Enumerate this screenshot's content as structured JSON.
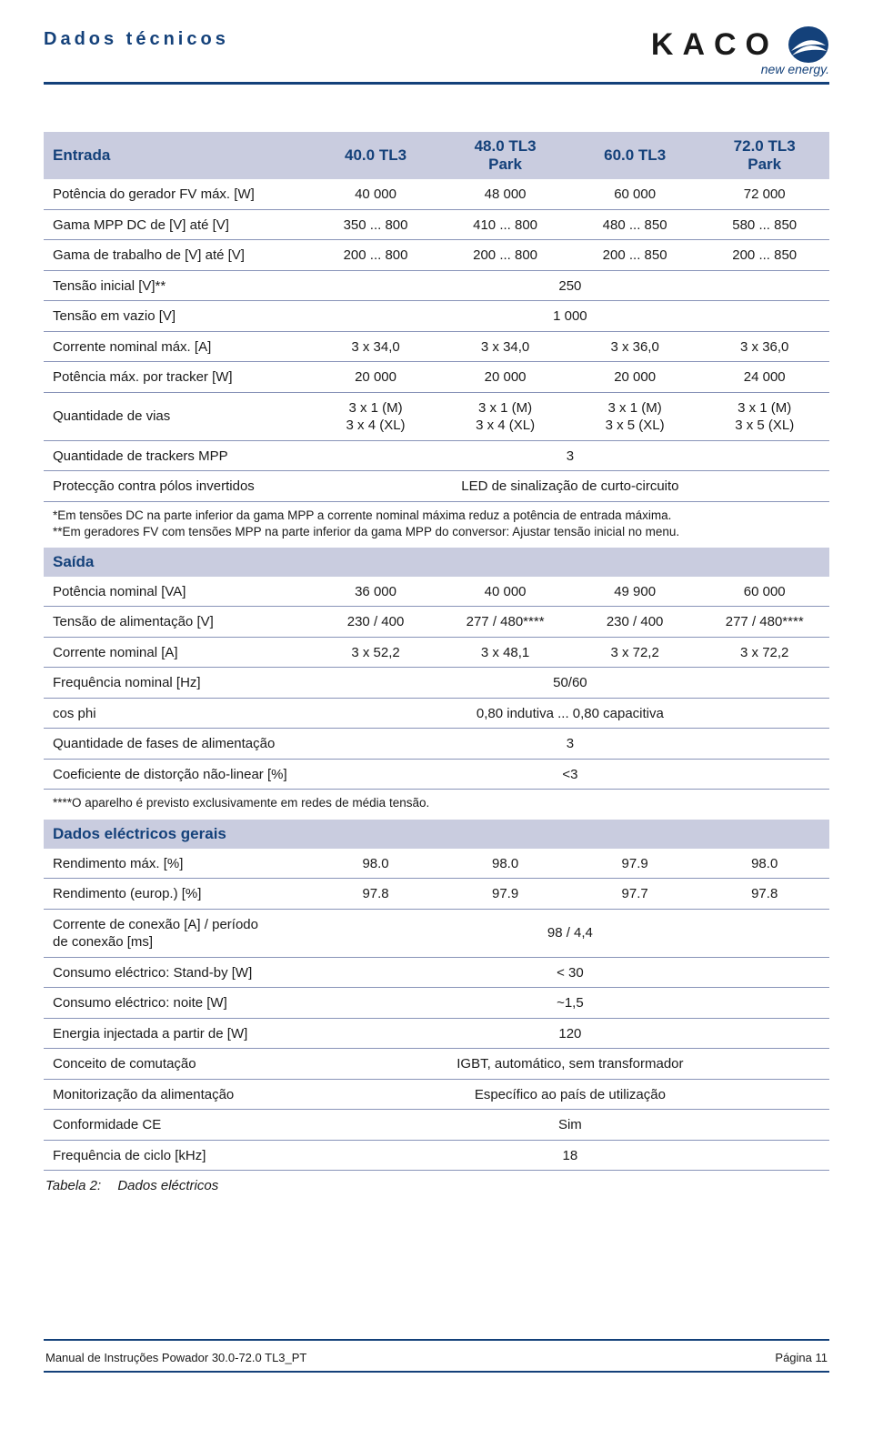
{
  "header": {
    "title": "Dados técnicos",
    "brand_name": "KACO",
    "brand_sub": "new energy."
  },
  "colors": {
    "primary": "#14417a",
    "section_bg": "#c9ccdf",
    "row_border": "#8893b8",
    "text": "#1a1a1a",
    "background": "#ffffff"
  },
  "columns": [
    "40.0 TL3",
    "48.0 TL3\nPark",
    "60.0 TL3",
    "72.0 TL3\nPark"
  ],
  "sections": {
    "entrada": {
      "title": "Entrada",
      "rows": [
        {
          "label": "Potência do gerador FV máx. [W]",
          "vals": [
            "40 000",
            "48 000",
            "60 000",
            "72 000"
          ]
        },
        {
          "label": "Gama MPP DC de [V] até [V]",
          "vals": [
            "350 ... 800",
            "410 ... 800",
            "480 ... 850",
            "580 ... 850"
          ]
        },
        {
          "label": "Gama de trabalho de [V] até [V]",
          "vals": [
            "200 ... 800",
            "200 ... 800",
            "200 ... 850",
            "200 ... 850"
          ]
        },
        {
          "label": "Tensão inicial [V]**",
          "span": "250"
        },
        {
          "label": "Tensão em vazio [V]",
          "span": "1 000"
        },
        {
          "label": "Corrente nominal máx. [A]",
          "vals": [
            "3 x 34,0",
            "3 x 34,0",
            "3 x 36,0",
            "3 x 36,0"
          ]
        },
        {
          "label": "Potência máx. por tracker [W]",
          "vals": [
            "20 000",
            "20 000",
            "20 000",
            "24 000"
          ]
        },
        {
          "label": "Quantidade de vias",
          "vals": [
            "3 x 1 (M)\n3 x 4 (XL)",
            "3 x 1 (M)\n3 x 4 (XL)",
            "3 x 1 (M)\n3 x 5 (XL)",
            "3 x 1 (M)\n3 x 5 (XL)"
          ]
        },
        {
          "label": "Quantidade de trackers MPP",
          "span": "3"
        },
        {
          "label": "Protecção contra pólos invertidos",
          "span": "LED de sinalização de curto-circuito"
        }
      ],
      "notes": "*Em tensões DC na parte inferior da gama MPP a corrente nominal máxima reduz a potência de entrada máxima.\n**Em geradores FV com tensões MPP na parte inferior da gama MPP do conversor: Ajustar tensão inicial no menu."
    },
    "saida": {
      "title": "Saída",
      "rows": [
        {
          "label": "Potência nominal [VA]",
          "vals": [
            "36 000",
            "40 000",
            "49 900",
            "60 000"
          ]
        },
        {
          "label": "Tensão de alimentação [V]",
          "vals": [
            "230 / 400",
            "277 / 480****",
            "230 / 400",
            "277 / 480****"
          ]
        },
        {
          "label": "Corrente nominal [A]",
          "vals": [
            "3 x 52,2",
            "3 x 48,1",
            "3 x 72,2",
            "3 x 72,2"
          ]
        },
        {
          "label": "Frequência nominal [Hz]",
          "span": "50/60"
        },
        {
          "label": "cos phi",
          "span": "0,80 indutiva ... 0,80 capacitiva"
        },
        {
          "label": "Quantidade de fases de alimentação",
          "span": "3"
        },
        {
          "label": "Coeficiente de distorção não-linear [%]",
          "span": "<3"
        }
      ],
      "notes": "****O aparelho é previsto exclusivamente em redes de média tensão."
    },
    "gerais": {
      "title": "Dados eléctricos gerais",
      "rows": [
        {
          "label": "Rendimento máx. [%]",
          "vals": [
            "98.0",
            "98.0",
            "97.9",
            "98.0"
          ]
        },
        {
          "label": "Rendimento (europ.) [%]",
          "vals": [
            "97.8",
            "97.9",
            "97.7",
            "97.8"
          ]
        },
        {
          "label": "Corrente de conexão [A] / período\nde conexão [ms]",
          "span": "98 / 4,4"
        },
        {
          "label": "Consumo eléctrico: Stand-by [W]",
          "span": "< 30"
        },
        {
          "label": "Consumo eléctrico: noite [W]",
          "span": "~1,5"
        },
        {
          "label": "Energia injectada a partir de [W]",
          "span": "120"
        },
        {
          "label": "Conceito de comutação",
          "span": "IGBT, automático, sem transformador"
        },
        {
          "label": "Monitorização da alimentação",
          "span": "Específico ao país de utilização"
        },
        {
          "label": "Conformidade CE",
          "span": "Sim"
        },
        {
          "label": "Frequência de ciclo [kHz]",
          "span": "18"
        }
      ]
    }
  },
  "caption": {
    "label": "Tabela 2:",
    "text": "Dados eléctricos"
  },
  "footer": {
    "left": "Manual de Instruções Powador 30.0-72.0 TL3_PT",
    "right": "Página 11"
  }
}
